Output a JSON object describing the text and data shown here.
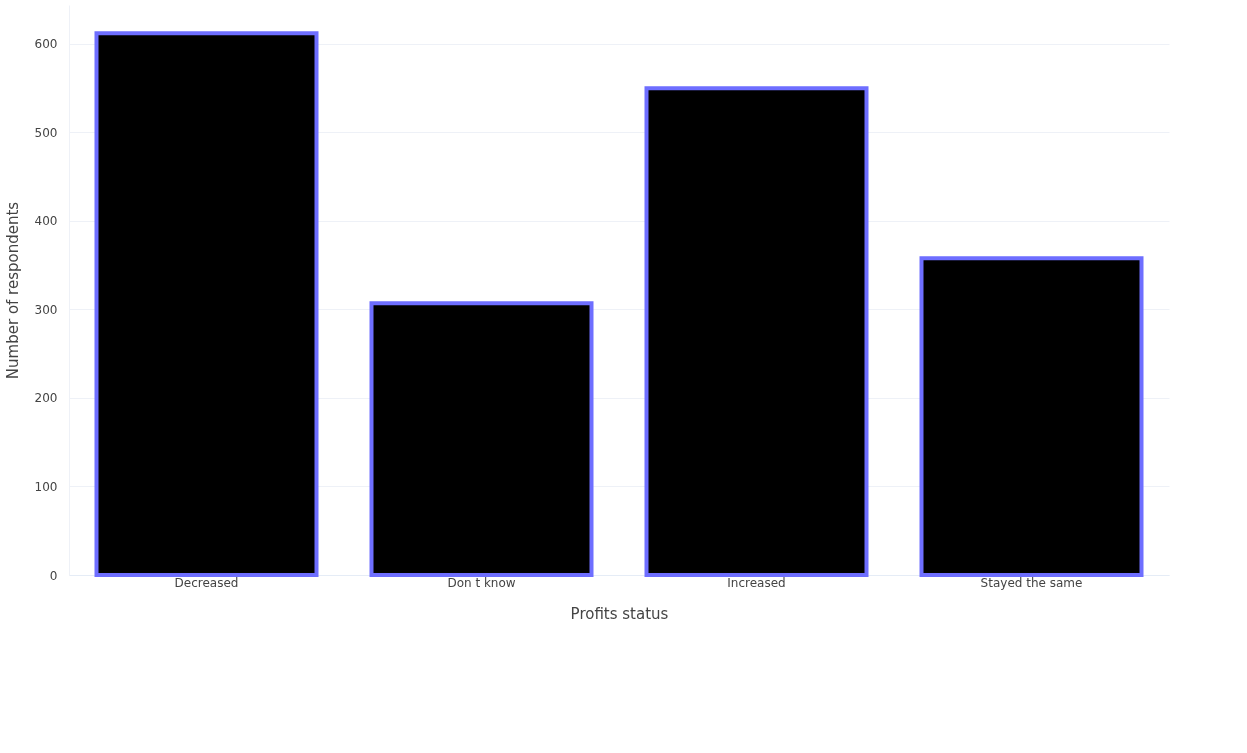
{
  "chart_data": {
    "type": "bar",
    "xlabel": "Profits status",
    "ylabel": "Number of respondents",
    "categories": [
      "Decreased",
      "Don t know",
      "Increased",
      "Stayed the same"
    ],
    "series": [
      {
        "color": "#000000",
        "values": [
          612,
          307,
          550,
          358
        ]
      }
    ],
    "ylim": [
      0,
      644
    ],
    "yticks": [
      0,
      100,
      200,
      300,
      400,
      500,
      600
    ],
    "grid": "y"
  }
}
